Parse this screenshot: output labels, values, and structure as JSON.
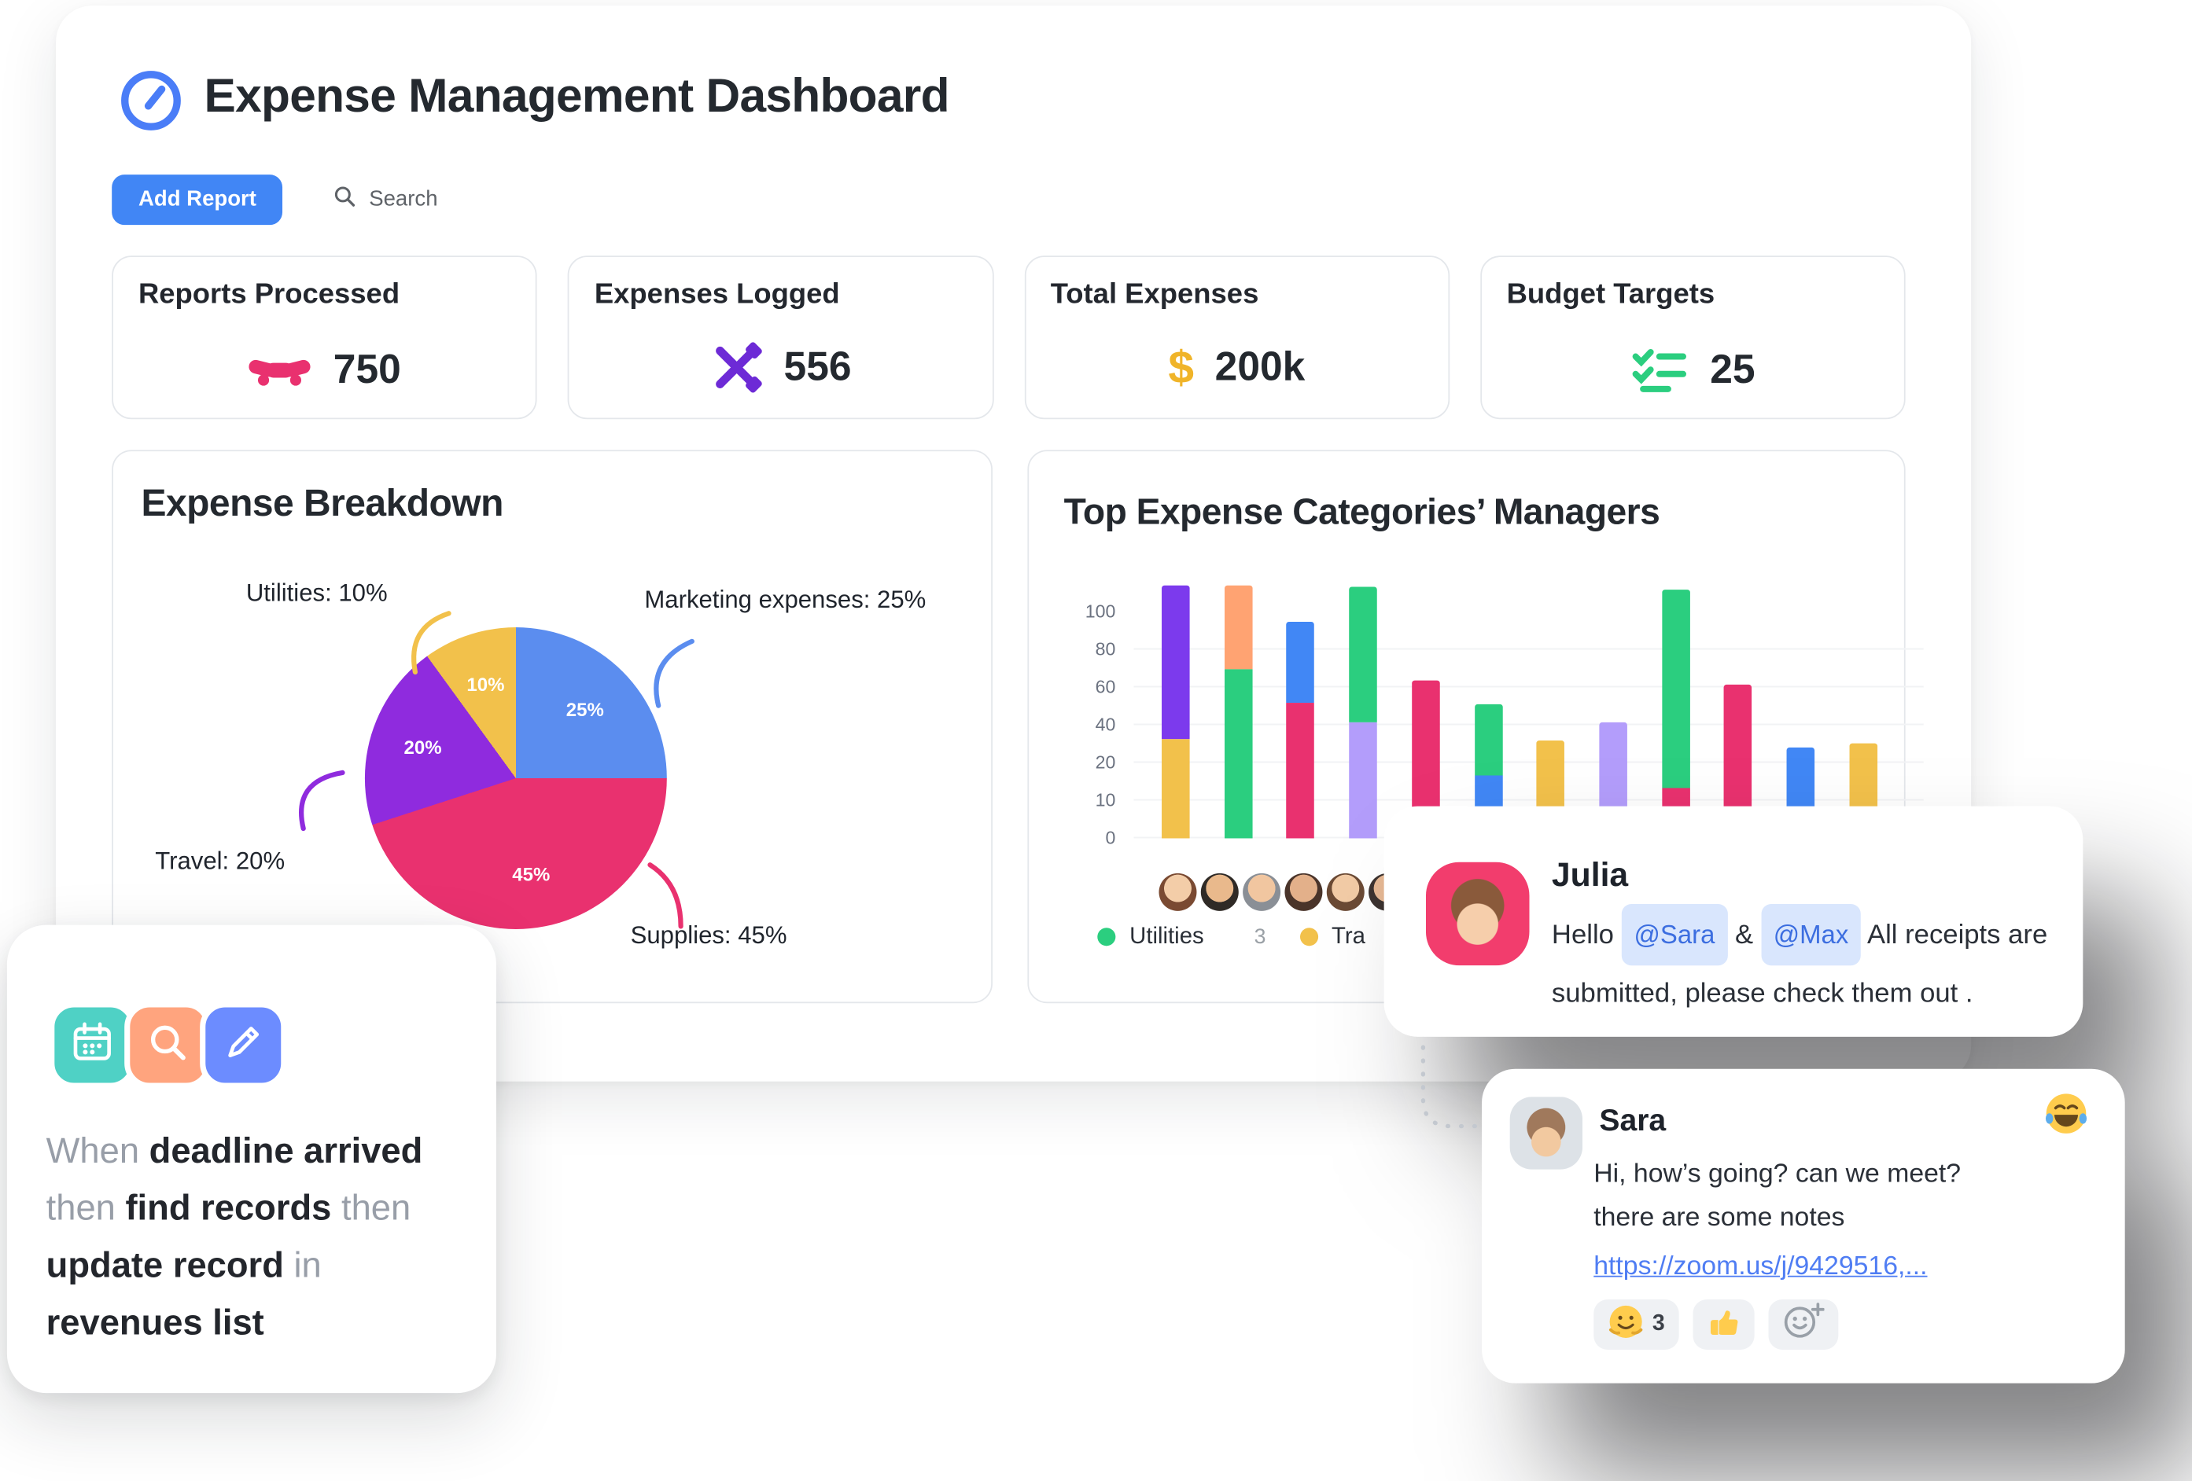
{
  "header": {
    "title": "Expense Management Dashboard"
  },
  "toolbar": {
    "add_report_label": "Add Report",
    "search_label": "Search"
  },
  "stats": [
    {
      "label": "Reports Processed",
      "value": "750",
      "icon": "handshake-icon",
      "color": "#E9316F"
    },
    {
      "label": "Expenses Logged",
      "value": "556",
      "icon": "crossed-tools-icon",
      "color": "#6D2AD6"
    },
    {
      "label": "Total Expenses",
      "value": "200k",
      "icon": "dollar-icon",
      "glyph": "$",
      "color": "#F0B429"
    },
    {
      "label": "Budget Targets",
      "value": "25",
      "icon": "checklist-icon",
      "color": "#2BCE7F"
    }
  ],
  "chart_data": [
    {
      "type": "pie",
      "title": "Expense Breakdown",
      "slices": [
        {
          "label": "Marketing expenses",
          "value": 25,
          "pct_label": "25%",
          "color": "#5B8DEF",
          "callout": "Marketing expenses: 25%"
        },
        {
          "label": "Supplies",
          "value": 45,
          "pct_label": "45%",
          "color": "#E9316F",
          "callout": "Supplies: 45%"
        },
        {
          "label": "Travel",
          "value": 20,
          "pct_label": "20%",
          "color": "#8F2BDE",
          "callout": "Travel: 20%"
        },
        {
          "label": "Utilities",
          "value": 10,
          "pct_label": "10%",
          "color": "#F2C14B",
          "callout": "Utilities: 10%"
        }
      ]
    },
    {
      "type": "bar",
      "title": "Top Expense Categories’ Managers",
      "stacked": true,
      "y_ticks": [
        "100",
        "80",
        "60",
        "40",
        "20",
        "10",
        "0"
      ],
      "ylim": [
        0,
        100
      ],
      "legend": [
        {
          "label": "Utilities",
          "count": "3",
          "color": "#2BCE7F"
        },
        {
          "label": "Tra",
          "count": "",
          "color": "#F2C14B"
        }
      ],
      "bars": [
        {
          "segments": [
            {
              "color": "#F2C14B",
              "value": 44
            },
            {
              "color": "#7C3AED",
              "value": 68
            }
          ]
        },
        {
          "segments": [
            {
              "color": "#2BCE7F",
              "value": 75
            },
            {
              "color": "#FFA372",
              "value": 37
            }
          ]
        },
        {
          "segments": [
            {
              "color": "#E9316F",
              "value": 60
            },
            {
              "color": "#4187F5",
              "value": 36
            }
          ]
        },
        {
          "segments": [
            {
              "color": "#B39DFB",
              "value": 51
            },
            {
              "color": "#2BCE7F",
              "value": 60
            }
          ]
        },
        {
          "segments": [
            {
              "color": "#4187F5",
              "value": 12
            },
            {
              "color": "#E9316F",
              "value": 58
            }
          ]
        },
        {
          "segments": [
            {
              "color": "#4187F5",
              "value": 28
            },
            {
              "color": "#2BCE7F",
              "value": 31
            }
          ]
        },
        {
          "segments": [
            {
              "color": "#F2C14B",
              "value": 43
            }
          ]
        },
        {
          "segments": [
            {
              "color": "#B39DFB",
              "value": 51
            }
          ]
        },
        {
          "segments": [
            {
              "color": "#E9316F",
              "value": 22
            },
            {
              "color": "#2BCE7F",
              "value": 88
            }
          ]
        },
        {
          "segments": [
            {
              "color": "#E9316F",
              "value": 68
            }
          ]
        },
        {
          "segments": [
            {
              "color": "#4187F5",
              "value": 40
            }
          ]
        },
        {
          "segments": [
            {
              "color": "#F2C14B",
              "value": 42
            }
          ]
        }
      ],
      "avatar_colors": [
        [
          "#F3CDA8",
          "#7A4A32"
        ],
        [
          "#E9B98C",
          "#2F2A26"
        ],
        [
          "#F1C6A0",
          "#8A8F96"
        ],
        [
          "#E3B08A",
          "#4A342A"
        ],
        [
          "#F2CBA6",
          "#6B4A35"
        ],
        [
          "#E6B894",
          "#3C3330"
        ]
      ]
    }
  ],
  "automation": {
    "icons": [
      "calendar-icon",
      "magnifier-icon",
      "edit-icon"
    ],
    "icon_colors": [
      "#4FD1C5",
      "#FFA47E",
      "#6C8CFF"
    ],
    "segments": [
      {
        "text": "When ",
        "bold": false
      },
      {
        "text": "deadline arrived",
        "bold": true
      },
      {
        "text": " then ",
        "bold": false
      },
      {
        "text": "find records",
        "bold": true
      },
      {
        "text": " then ",
        "bold": false
      },
      {
        "text": "update record",
        "bold": true
      },
      {
        "text": " in ",
        "bold": false
      },
      {
        "text": "revenues list",
        "bold": true
      }
    ]
  },
  "chat": {
    "julia": {
      "author": "Julia",
      "parts": [
        {
          "type": "text",
          "text": "Hello "
        },
        {
          "type": "mention",
          "text": "@Sara"
        },
        {
          "type": "text",
          "text": " & "
        },
        {
          "type": "mention",
          "text": "@Max"
        },
        {
          "type": "text",
          "text": " All receipts are submitted, please check them out ."
        }
      ]
    },
    "sara": {
      "author": "Sara",
      "corner_emoji": "laughing-emoji",
      "lines": [
        "Hi, how’s going? can we meet?",
        "there are some notes"
      ],
      "link": "https://zoom.us/j/9429516,...",
      "reactions": [
        {
          "icon": "hug-emoji",
          "count": "3"
        },
        {
          "icon": "thumbs-up-emoji",
          "count": ""
        },
        {
          "icon": "add-reaction-icon",
          "count": ""
        }
      ]
    }
  }
}
